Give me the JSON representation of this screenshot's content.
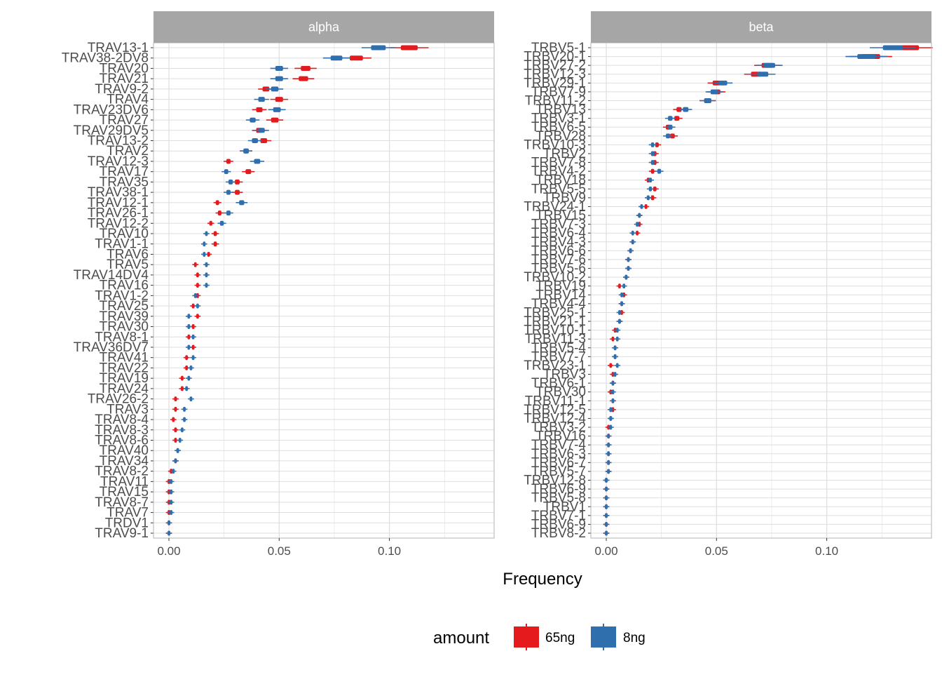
{
  "chart_data": {
    "type": "boxplot",
    "xlabel": "Frequency",
    "xlim": [
      -0.007,
      0.1475
    ],
    "x_ticks": [
      0.0,
      0.05,
      0.1
    ],
    "x_tick_labels": [
      "0.00",
      "0.05",
      "0.10"
    ],
    "grid": true,
    "legend": {
      "title": "amount",
      "position": "bottom",
      "items": [
        {
          "label": "65ng",
          "color": "#e41a1c"
        },
        {
          "label": "8ng",
          "color": "#2f6fad"
        }
      ]
    },
    "panels": [
      {
        "strip": "alpha",
        "categories": [
          "TRAV13-1",
          "TRAV38-2DV8",
          "TRAV20",
          "TRAV21",
          "TRAV9-2",
          "TRAV4",
          "TRAV23DV6",
          "TRAV27",
          "TRAV29DV5",
          "TRAV13-2",
          "TRAV2",
          "TRAV12-3",
          "TRAV17",
          "TRAV35",
          "TRAV38-1",
          "TRAV12-1",
          "TRAV26-1",
          "TRAV12-2",
          "TRAV10",
          "TRAV1-1",
          "TRAV6",
          "TRAV5",
          "TRAV14DV4",
          "TRAV16",
          "TRAV1-2",
          "TRAV25",
          "TRAV39",
          "TRAV30",
          "TRAV8-1",
          "TRAV36DV7",
          "TRAV41",
          "TRAV22",
          "TRAV19",
          "TRAV24",
          "TRAV26-2",
          "TRAV3",
          "TRAV8-4",
          "TRAV8-3",
          "TRAV8-6",
          "TRAV40",
          "TRAV34",
          "TRAV8-2",
          "TRAV11",
          "TRAV15",
          "TRAV8-7",
          "TRAV7",
          "TRDV1",
          "TRAV9-1"
        ],
        "series": [
          {
            "name": "65ng",
            "values": [
              0.109,
              0.085,
              0.062,
              0.061,
              0.044,
              0.05,
              0.041,
              0.048,
              0.041,
              0.043,
              0.035,
              0.027,
              0.036,
              0.031,
              0.031,
              0.022,
              0.023,
              0.019,
              0.021,
              0.021,
              0.018,
              0.012,
              0.013,
              0.013,
              0.013,
              0.011,
              0.013,
              0.011,
              0.009,
              0.011,
              0.008,
              0.008,
              0.006,
              0.006,
              0.003,
              0.003,
              0.002,
              0.003,
              0.003,
              0.004,
              0.003,
              0.001,
              0.0,
              0.0,
              0.0,
              0.0,
              0.0,
              0.0
            ]
          },
          {
            "name": "8ng",
            "values": [
              0.095,
              0.076,
              0.05,
              0.05,
              0.048,
              0.042,
              0.049,
              0.038,
              0.042,
              0.039,
              0.035,
              0.04,
              0.026,
              0.028,
              0.027,
              0.033,
              0.027,
              0.024,
              0.017,
              0.016,
              0.016,
              0.017,
              0.017,
              0.017,
              0.012,
              0.013,
              0.009,
              0.009,
              0.011,
              0.009,
              0.011,
              0.01,
              0.009,
              0.008,
              0.01,
              0.007,
              0.007,
              0.006,
              0.005,
              0.004,
              0.003,
              0.002,
              0.001,
              0.001,
              0.001,
              0.001,
              0.0,
              0.0
            ]
          }
        ]
      },
      {
        "strip": "beta",
        "categories": [
          "TRBV5-1",
          "TRBV20-1",
          "TRBV27-2",
          "TRBV12-3",
          "TRBV29-1",
          "TRBV7-9",
          "TRBV11-2",
          "TRBV13",
          "TRBV3-1",
          "TRBV6-5",
          "TRBV28",
          "TRBV10-3",
          "TRBV2",
          "TRBV7-8",
          "TRBV4-2",
          "TRBV18",
          "TRBV5-5",
          "TRBV9",
          "TRBV24-1",
          "TRBV15",
          "TRBV7-3",
          "TRBV6-4",
          "TRBV4-3",
          "TRBV6-6",
          "TRBV7-6",
          "TRBV5-6",
          "TRBV10-2",
          "TRBV19",
          "TRBV14",
          "TRBV4-4",
          "TRBV25-1",
          "TRBV21-1",
          "TRBV10-1",
          "TRBV11-3",
          "TRBV5-4",
          "TRBV7-7",
          "TRBV23-1",
          "TRBV3",
          "TRBV6-1",
          "TRBV30",
          "TRBV11-1",
          "TRBV12-5",
          "TRBV12-4",
          "TRBV3-2",
          "TRBV16",
          "TRBV7-4",
          "TRBV6-3",
          "TRBV6-7",
          "TRBV5-7",
          "TRBV12-8",
          "TRBV6-9",
          "TRBV5-8",
          "TRBV1",
          "TRBV7-1",
          "TRBV6-9",
          "TRBV8-2"
        ],
        "series": [
          {
            "name": "65ng",
            "values": [
              0.137,
              0.12,
              0.073,
              0.068,
              0.05,
              0.05,
              0.046,
              0.033,
              0.032,
              0.028,
              0.03,
              0.023,
              0.022,
              0.022,
              0.021,
              0.019,
              0.022,
              0.021,
              0.018,
              0.015,
              0.015,
              0.014,
              0.012,
              0.011,
              0.01,
              0.01,
              0.009,
              0.006,
              0.008,
              0.007,
              0.007,
              0.006,
              0.004,
              0.003,
              0.004,
              0.004,
              0.002,
              0.003,
              0.003,
              0.002,
              0.003,
              0.003,
              0.002,
              0.001,
              0.001,
              0.001,
              0.001,
              0.001,
              0.001,
              0.0,
              0.0,
              0.0,
              0.0,
              0.0,
              0.0,
              0.0
            ]
          },
          {
            "name": "8ng",
            "values": [
              0.13,
              0.118,
              0.074,
              0.071,
              0.053,
              0.049,
              0.046,
              0.036,
              0.029,
              0.029,
              0.028,
              0.021,
              0.021,
              0.021,
              0.024,
              0.02,
              0.02,
              0.019,
              0.016,
              0.015,
              0.014,
              0.012,
              0.012,
              0.011,
              0.01,
              0.01,
              0.009,
              0.008,
              0.007,
              0.007,
              0.006,
              0.006,
              0.005,
              0.005,
              0.004,
              0.004,
              0.005,
              0.004,
              0.003,
              0.003,
              0.003,
              0.002,
              0.002,
              0.002,
              0.001,
              0.001,
              0.001,
              0.001,
              0.001,
              0.0,
              0.0,
              0.0,
              0.0,
              0.0,
              0.0,
              0.0
            ]
          }
        ]
      }
    ]
  }
}
